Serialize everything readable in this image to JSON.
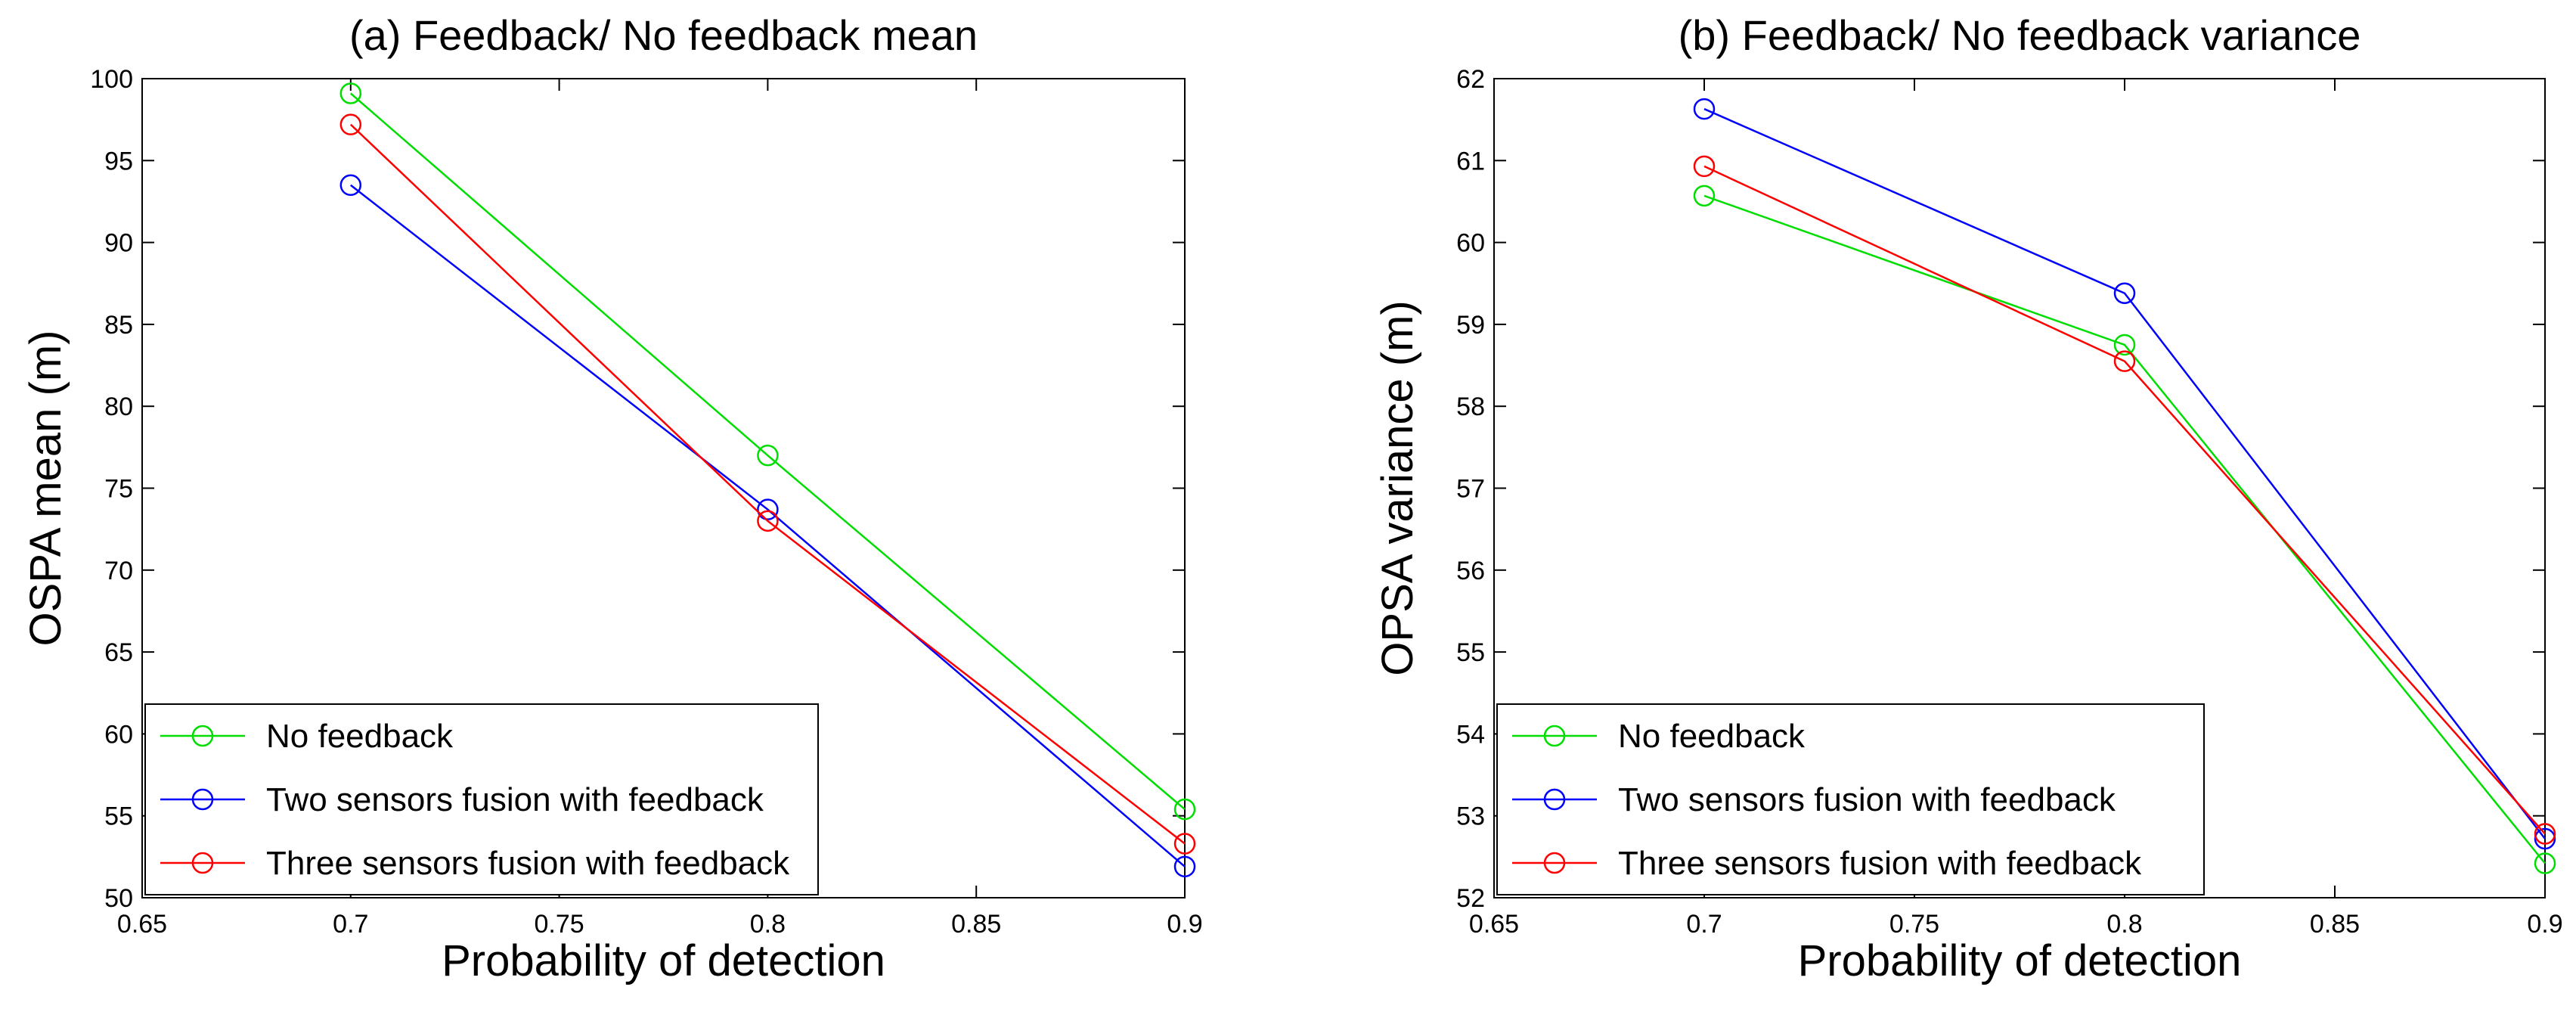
{
  "chart_data": [
    {
      "type": "line",
      "title": "(a) Feedback/ No feedback mean",
      "xlabel": "Probability of detection",
      "ylabel": "OSPA mean (m)",
      "xlim": [
        0.65,
        0.9
      ],
      "ylim": [
        50,
        100
      ],
      "xticks": [
        0.65,
        0.7,
        0.75,
        0.8,
        0.85,
        0.9
      ],
      "xtick_labels": [
        "0.65",
        "0.7",
        "0.75",
        "0.8",
        "0.85",
        "0.9"
      ],
      "yticks": [
        50,
        55,
        60,
        65,
        70,
        75,
        80,
        85,
        90,
        95,
        100
      ],
      "ytick_labels": [
        "50",
        "55",
        "60",
        "65",
        "70",
        "75",
        "80",
        "85",
        "90",
        "95",
        "100"
      ],
      "grid": false,
      "legend_position": "bottom-left",
      "x": [
        0.7,
        0.8,
        0.9
      ],
      "series": [
        {
          "name": "No feedback",
          "color": "#00dd00",
          "values": [
            99.1,
            77.0,
            55.4
          ]
        },
        {
          "name": "Two sensors fusion with feedback",
          "color": "#0000ff",
          "values": [
            93.5,
            73.7,
            51.9
          ]
        },
        {
          "name": "Three sensors fusion with feedback",
          "color": "#ff0000",
          "values": [
            97.2,
            73.0,
            53.3
          ]
        }
      ]
    },
    {
      "type": "line",
      "title": "(b) Feedback/ No feedback variance",
      "xlabel": "Probability of detection",
      "ylabel": "OPSA variance (m)",
      "xlim": [
        0.65,
        0.9
      ],
      "ylim": [
        52,
        62
      ],
      "xticks": [
        0.65,
        0.7,
        0.75,
        0.8,
        0.85,
        0.9
      ],
      "xtick_labels": [
        "0.65",
        "0.7",
        "0.75",
        "0.8",
        "0.85",
        "0.9"
      ],
      "yticks": [
        52,
        53,
        54,
        55,
        56,
        57,
        58,
        59,
        60,
        61,
        62
      ],
      "ytick_labels": [
        "52",
        "53",
        "54",
        "55",
        "56",
        "57",
        "58",
        "59",
        "60",
        "61",
        "62"
      ],
      "grid": false,
      "legend_position": "bottom-left",
      "x": [
        0.7,
        0.8,
        0.9
      ],
      "series": [
        {
          "name": "No feedback",
          "color": "#00dd00",
          "values": [
            60.57,
            58.75,
            52.42
          ]
        },
        {
          "name": "Two sensors fusion with feedback",
          "color": "#0000ff",
          "values": [
            61.63,
            59.38,
            52.72
          ]
        },
        {
          "name": "Three sensors fusion with feedback",
          "color": "#ff0000",
          "values": [
            60.93,
            58.55,
            52.78
          ]
        }
      ]
    }
  ]
}
